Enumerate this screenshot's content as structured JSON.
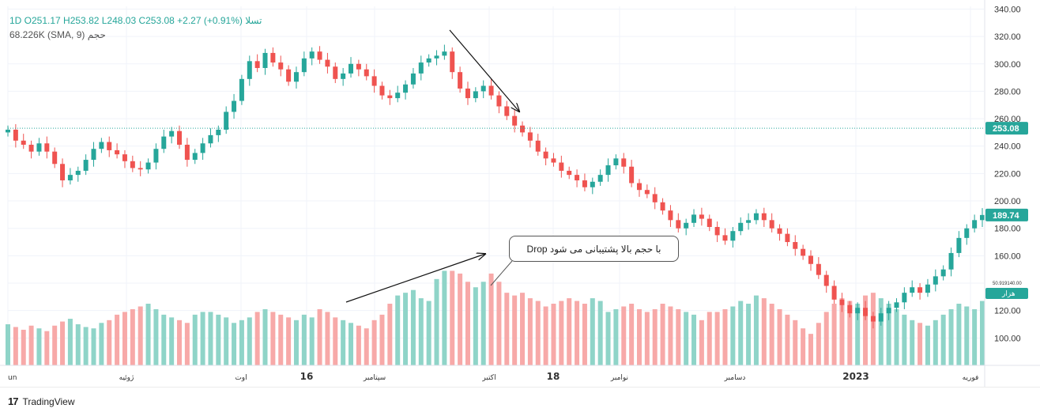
{
  "legend": {
    "line1": "1D O251.17 H253.82 L248.03 C253.08 +2.27 (+0.91%) تسلا",
    "line2": "68.226K (SMA, 9) حجم"
  },
  "price_axis": {
    "labels": [
      "340.00",
      "320.00",
      "300.00",
      "280.00",
      "260.00",
      "240.00",
      "220.00",
      "200.00",
      "180.00",
      "160.00",
      "120.00",
      "100.00"
    ],
    "last_price": "253.08",
    "alt_price": "189.74",
    "volume_small": "50.919140.00",
    "volume_tag": "هزار"
  },
  "time_axis": {
    "labels": [
      "un",
      "ژوئیه",
      "اوت",
      "16",
      "سپتامبر",
      "اکتبر",
      "18",
      "نوامبر",
      "دسامبر",
      "2023",
      "فوریه"
    ]
  },
  "annotation": {
    "text": "Drop با حجم بالا پشتیبانی می شود"
  },
  "brand": {
    "name": "TradingView"
  },
  "colors": {
    "up": "#26a69a",
    "down": "#ef5350",
    "up_volume": "#8fd4c8",
    "down_volume": "#f7a9a8"
  },
  "chart_data": {
    "type": "candlestick",
    "title": "تسلا",
    "interval": "1D",
    "y_range": [
      80,
      342
    ],
    "last": {
      "open": 251.17,
      "high": 253.82,
      "low": 248.03,
      "close": 253.08,
      "change": 2.27,
      "change_pct": 0.91
    },
    "volume_sma_9": "68.226K",
    "price_path": [
      252,
      244,
      241,
      236,
      242,
      236,
      227,
      215,
      219,
      222,
      230,
      238,
      243,
      237,
      234,
      229,
      224,
      223,
      228,
      238,
      247,
      251,
      241,
      230,
      235,
      242,
      248,
      252,
      265,
      273,
      289,
      302,
      297,
      308,
      301,
      296,
      287,
      294,
      304,
      309,
      303,
      298,
      289,
      293,
      300,
      296,
      291,
      284,
      277,
      275,
      279,
      285,
      293,
      301,
      304,
      306,
      309,
      294,
      282,
      275,
      280,
      284,
      277,
      269,
      262,
      255,
      250,
      244,
      236,
      231,
      228,
      222,
      219,
      215,
      210,
      214,
      219,
      226,
      231,
      225,
      213,
      208,
      205,
      199,
      193,
      186,
      180,
      184,
      190,
      187,
      181,
      175,
      171,
      178,
      184,
      186,
      191,
      186,
      180,
      176,
      170,
      165,
      160,
      154,
      146,
      138,
      128,
      124,
      118,
      122,
      116,
      112,
      118,
      122,
      126,
      133,
      137,
      133,
      139,
      145,
      150,
      162,
      173,
      180,
      186,
      189.74
    ],
    "volume_bars": [
      110,
      108,
      106,
      109,
      107,
      105,
      109,
      112,
      114,
      110,
      108,
      107,
      111,
      113,
      117,
      119,
      121,
      123,
      125,
      121,
      117,
      115,
      113,
      111,
      117,
      119,
      119,
      117,
      115,
      111,
      113,
      115,
      119,
      121,
      119,
      117,
      115,
      113,
      117,
      115,
      121,
      119,
      115,
      113,
      111,
      109,
      107,
      113,
      117,
      125,
      131,
      133,
      135,
      129,
      127,
      143,
      149,
      149,
      147,
      141,
      137,
      141,
      147,
      141,
      133,
      131,
      133,
      129,
      127,
      123,
      125,
      127,
      129,
      127,
      125,
      129,
      127,
      119,
      121,
      123,
      125,
      121,
      119,
      121,
      125,
      123,
      121,
      119,
      117,
      113,
      119,
      119,
      121,
      123,
      127,
      125,
      131,
      129,
      125,
      121,
      117,
      113,
      107,
      103,
      111,
      119,
      125,
      129,
      127,
      125,
      131,
      133,
      129,
      125,
      121,
      117,
      113,
      111,
      109,
      113,
      117,
      121,
      125,
      123,
      121,
      127
    ],
    "volume_axis_note": "volume bars drawn as relative heights"
  }
}
